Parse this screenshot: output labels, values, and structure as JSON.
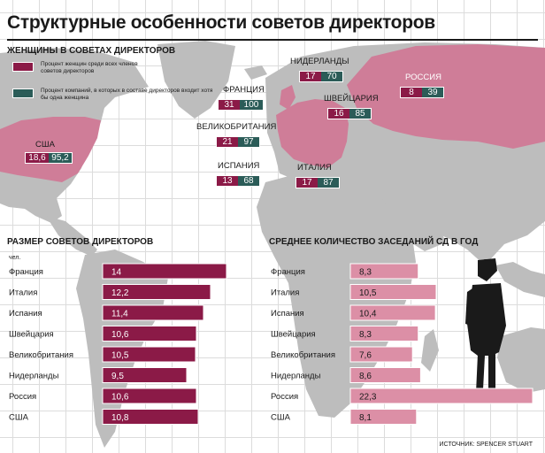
{
  "title": "Структурные особенности советов директоров",
  "colors": {
    "women": "#8b1a47",
    "boards": "#2b5c58",
    "meetings": "#dc8fa6",
    "highlight_land": "#cf7d98"
  },
  "map_section": {
    "title": "ЖЕНЩИНЫ В СОВЕТАХ ДИРЕКТОРОВ",
    "legend": [
      "Процент женщин среди всех членов советов директоров",
      "Процент компаний, в которых в составе директоров входит хотя бы одна женщина"
    ],
    "countries": [
      {
        "name": "США",
        "women": "18,6",
        "boards": "95,2"
      },
      {
        "name": "ФРАНЦИЯ",
        "women": "31",
        "boards": "100"
      },
      {
        "name": "ВЕЛИКОБРИТАНИЯ",
        "women": "21",
        "boards": "97"
      },
      {
        "name": "ИСПАНИЯ",
        "women": "13",
        "boards": "68"
      },
      {
        "name": "НИДЕРЛАНДЫ",
        "women": "17",
        "boards": "70"
      },
      {
        "name": "ШВЕЙЦАРИЯ",
        "women": "16",
        "boards": "85"
      },
      {
        "name": "ИТАЛИЯ",
        "women": "17",
        "boards": "87"
      },
      {
        "name": "РОССИЯ",
        "women": "8",
        "boards": "39"
      }
    ]
  },
  "chart_data": [
    {
      "type": "bar",
      "title": "РАЗМЕР СОВЕТОВ ДИРЕКТОРОВ",
      "ylabel": "чел.",
      "categories": [
        "Франция",
        "Италия",
        "Испания",
        "Швейцария",
        "Великобритания",
        "Нидерланды",
        "Россия",
        "США"
      ],
      "values": [
        14,
        12.2,
        11.4,
        10.6,
        10.5,
        9.5,
        10.6,
        10.8
      ],
      "value_labels": [
        "14",
        "12,2",
        "11,4",
        "10,6",
        "10,5",
        "9,5",
        "10,6",
        "10,8"
      ],
      "orientation": "horizontal"
    },
    {
      "type": "bar",
      "title": "СРЕДНЕЕ КОЛИЧЕСТВО ЗАСЕДАНИЙ СД В ГОД",
      "categories": [
        "Франция",
        "Италия",
        "Испания",
        "Швейцария",
        "Великобритания",
        "Нидерланды",
        "Россия",
        "США"
      ],
      "values": [
        8.3,
        10.5,
        10.4,
        8.3,
        7.6,
        8.6,
        22.3,
        8.1
      ],
      "value_labels": [
        "8,3",
        "10,5",
        "10,4",
        "8,3",
        "7,6",
        "8,6",
        "22,3",
        "8,1"
      ],
      "orientation": "horizontal"
    }
  ],
  "source": "ИСТОЧНИК: SPENCER STUART"
}
